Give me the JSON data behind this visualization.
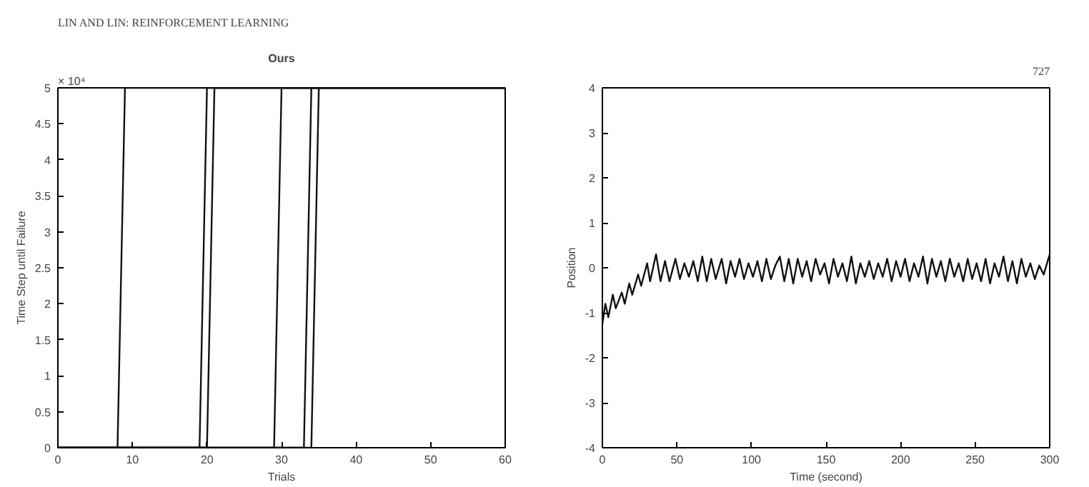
{
  "chart_data": [
    {
      "type": "line",
      "title": "Ours",
      "xlabel": "Trials",
      "ylabel": "Time Step until Failure",
      "annotations": [
        "LIN AND LIN: REINFORCEMENT LEARNING",
        "× 10⁴"
      ],
      "series": [
        {
          "color": "#111111",
          "x": [
            0,
            8,
            9,
            60
          ],
          "values": [
            0,
            0,
            5,
            5
          ]
        },
        {
          "color": "#111111",
          "x": [
            0,
            19,
            20,
            60
          ],
          "values": [
            0,
            0,
            5,
            5
          ]
        },
        {
          "color": "#111111",
          "x": [
            0,
            20,
            21,
            60
          ],
          "values": [
            0,
            0,
            5,
            5
          ]
        },
        {
          "color": "#111111",
          "x": [
            0,
            29,
            30,
            60
          ],
          "values": [
            0,
            0,
            5,
            5
          ]
        },
        {
          "color": "#111111",
          "x": [
            0,
            33,
            34,
            60
          ],
          "values": [
            0,
            0,
            5,
            5
          ]
        },
        {
          "color": "#111111",
          "x": [
            0,
            34,
            35,
            60
          ],
          "values": [
            0,
            0,
            5,
            5
          ]
        }
      ],
      "xlim": [
        0,
        60
      ],
      "ylim": [
        0,
        5
      ],
      "xticks": [
        0,
        10,
        20,
        30,
        40,
        50,
        60
      ],
      "yticks": [
        0,
        0.5,
        1,
        1.5,
        2,
        2.5,
        3,
        3.5,
        4,
        4.5,
        5
      ],
      "grid": false
    },
    {
      "type": "line",
      "xlabel": "Time (second)",
      "ylabel": "Position",
      "annotations": [
        "727"
      ],
      "series": [
        {
          "color": "#111111",
          "x": [
            0,
            2,
            4,
            7,
            9,
            13,
            15,
            18,
            20,
            24,
            26,
            30,
            32,
            36,
            39,
            42,
            45,
            49,
            52,
            55,
            58,
            61,
            64,
            67,
            70,
            73,
            76,
            80,
            83,
            86,
            89,
            92,
            95,
            98,
            101,
            104,
            107,
            110,
            113,
            116,
            119,
            122,
            125,
            128,
            131,
            134,
            137,
            140,
            143,
            146,
            149,
            152,
            155,
            158,
            161,
            164,
            167,
            170,
            173,
            176,
            179,
            182,
            185,
            188,
            191,
            194,
            197,
            200,
            203,
            206,
            209,
            212,
            215,
            218,
            221,
            224,
            227,
            230,
            233,
            236,
            239,
            242,
            245,
            248,
            251,
            254,
            257,
            260,
            263,
            266,
            269,
            272,
            275,
            278,
            281,
            284,
            287,
            290,
            293,
            296,
            300
          ],
          "values": [
            -1.25,
            -0.8,
            -1.1,
            -0.6,
            -0.9,
            -0.55,
            -0.8,
            -0.35,
            -0.6,
            -0.15,
            -0.4,
            0.1,
            -0.3,
            0.3,
            -0.3,
            0.15,
            -0.3,
            0.2,
            -0.25,
            0.1,
            -0.2,
            0.15,
            -0.3,
            0.25,
            -0.3,
            0.2,
            -0.25,
            0.2,
            -0.35,
            0.15,
            -0.2,
            0.2,
            -0.25,
            0.1,
            -0.2,
            0.15,
            -0.3,
            0.2,
            -0.25,
            0.05,
            0.25,
            -0.3,
            0.2,
            -0.35,
            0.2,
            -0.2,
            0.15,
            -0.3,
            0.2,
            -0.15,
            0.1,
            -0.35,
            0.2,
            -0.2,
            0.1,
            -0.3,
            0.25,
            -0.35,
            0.1,
            -0.2,
            0.15,
            -0.25,
            0.1,
            -0.2,
            0.2,
            -0.3,
            0.15,
            -0.2,
            0.2,
            -0.3,
            0.1,
            -0.2,
            0.25,
            -0.35,
            0.2,
            -0.2,
            0.15,
            -0.3,
            0.2,
            -0.2,
            0.1,
            -0.3,
            0.2,
            -0.25,
            0.1,
            -0.3,
            0.2,
            -0.35,
            0.1,
            -0.2,
            0.25,
            -0.3,
            0.15,
            -0.35,
            0.2,
            -0.2,
            0.1,
            -0.25,
            0.05,
            -0.15,
            0.3
          ]
        }
      ],
      "xlim": [
        0,
        300
      ],
      "ylim": [
        -4,
        4
      ],
      "xticks": [
        0,
        50,
        100,
        150,
        200,
        250,
        300
      ],
      "yticks": [
        -4,
        -3,
        -2,
        -1,
        0,
        1,
        2,
        3,
        4
      ],
      "grid": false
    }
  ]
}
